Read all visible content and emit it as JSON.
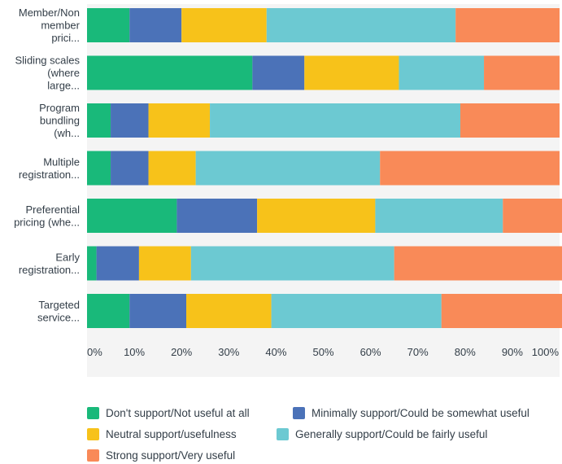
{
  "chart_data": {
    "type": "bar",
    "orientation": "horizontal",
    "stacked": true,
    "categories": [
      [
        "Member/Non",
        "member",
        "prici..."
      ],
      [
        "Sliding scales",
        "(where",
        "large..."
      ],
      [
        "Program",
        "bundling",
        "(wh..."
      ],
      [
        "Multiple",
        "registration..."
      ],
      [
        "Preferential",
        "pricing (whe..."
      ],
      [
        "Early",
        "registration..."
      ],
      [
        "Targeted",
        "service..."
      ]
    ],
    "series": [
      {
        "name": "Don't support/Not useful at all",
        "color": "#19b97a",
        "values": [
          9,
          35,
          5,
          5,
          19,
          2,
          9
        ]
      },
      {
        "name": "Minimally support/Could be somewhat useful",
        "color": "#4b72b8",
        "values": [
          11,
          11,
          8,
          8,
          17,
          9,
          12
        ]
      },
      {
        "name": "Neutral support/usefulness",
        "color": "#f7c21a",
        "values": [
          18,
          20,
          13,
          10,
          25,
          11,
          18
        ]
      },
      {
        "name": "Generally support/Could be fairly useful",
        "color": "#6cc9d2",
        "values": [
          40,
          18,
          53,
          39,
          27,
          43,
          36
        ]
      },
      {
        "name": "Strong support/Very useful",
        "color": "#f98a58",
        "values": [
          22,
          16,
          21,
          38,
          13,
          36,
          26
        ]
      }
    ],
    "xlim": [
      0,
      100
    ],
    "xticks": [
      "0%",
      "10%",
      "20%",
      "30%",
      "40%",
      "50%",
      "60%",
      "70%",
      "80%",
      "90%",
      "100%"
    ],
    "grid": false,
    "legend_position": "bottom"
  }
}
